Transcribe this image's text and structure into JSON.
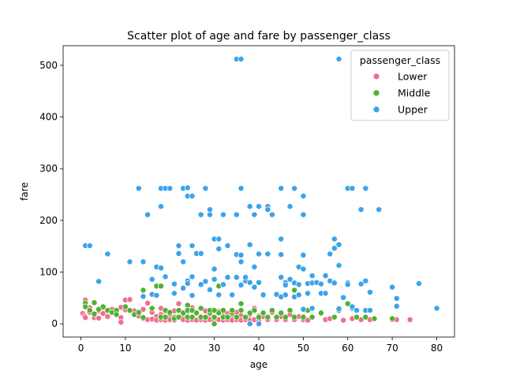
{
  "chart_data": {
    "type": "scatter",
    "title": "Scatter plot of age and fare by passenger_class",
    "xlabel": "age",
    "ylabel": "fare",
    "xlim": [
      -4,
      84
    ],
    "ylim": [
      -25.6,
      537.9
    ],
    "xticks": [
      0,
      10,
      20,
      30,
      40,
      50,
      60,
      70,
      80
    ],
    "yticks": [
      0,
      100,
      200,
      300,
      400,
      500
    ],
    "grid": false,
    "legend": {
      "title": "passenger_class",
      "placement": "top-right"
    },
    "series": [
      {
        "name": "Lower",
        "color": "#f0708a",
        "points": [
          [
            0.4,
            20
          ],
          [
            0.8,
            15
          ],
          [
            1,
            46
          ],
          [
            1,
            12
          ],
          [
            2,
            31
          ],
          [
            2,
            22
          ],
          [
            3,
            18
          ],
          [
            3,
            12
          ],
          [
            4,
            25
          ],
          [
            4,
            11
          ],
          [
            5,
            31
          ],
          [
            5,
            20
          ],
          [
            6,
            14
          ],
          [
            7,
            28
          ],
          [
            8,
            21
          ],
          [
            9,
            32
          ],
          [
            9,
            12
          ],
          [
            9,
            3
          ],
          [
            10,
            46
          ],
          [
            10,
            27
          ],
          [
            11,
            47
          ],
          [
            12,
            25
          ],
          [
            13,
            15
          ],
          [
            14,
            28
          ],
          [
            14,
            10
          ],
          [
            15,
            40
          ],
          [
            15,
            8
          ],
          [
            16,
            22
          ],
          [
            16,
            9
          ],
          [
            17,
            14
          ],
          [
            17,
            7
          ],
          [
            18,
            30
          ],
          [
            18,
            18
          ],
          [
            18,
            8
          ],
          [
            19,
            24
          ],
          [
            19,
            7
          ],
          [
            20,
            16
          ],
          [
            20,
            8
          ],
          [
            21,
            25
          ],
          [
            21,
            7
          ],
          [
            22,
            39
          ],
          [
            22,
            12
          ],
          [
            23,
            18
          ],
          [
            23,
            8
          ],
          [
            24,
            24
          ],
          [
            24,
            7
          ],
          [
            25,
            31
          ],
          [
            25,
            8
          ],
          [
            26,
            20
          ],
          [
            26,
            7
          ],
          [
            27,
            14
          ],
          [
            27,
            8
          ],
          [
            28,
            25
          ],
          [
            28,
            7
          ],
          [
            29,
            18
          ],
          [
            29,
            8
          ],
          [
            30,
            14
          ],
          [
            30,
            7
          ],
          [
            31,
            24
          ],
          [
            31,
            8
          ],
          [
            32,
            16
          ],
          [
            32,
            7
          ],
          [
            33,
            20
          ],
          [
            33,
            8
          ],
          [
            34,
            14
          ],
          [
            34,
            7
          ],
          [
            35,
            22
          ],
          [
            35,
            8
          ],
          [
            36,
            16
          ],
          [
            36,
            7
          ],
          [
            37,
            12
          ],
          [
            37,
            8
          ],
          [
            38,
            18
          ],
          [
            38,
            7
          ],
          [
            39,
            30
          ],
          [
            39,
            8
          ],
          [
            40,
            15
          ],
          [
            40,
            7
          ],
          [
            41,
            14
          ],
          [
            42,
            8
          ],
          [
            43,
            22
          ],
          [
            44,
            8
          ],
          [
            45,
            14
          ],
          [
            46,
            8
          ],
          [
            47,
            18
          ],
          [
            48,
            8
          ],
          [
            49,
            14
          ],
          [
            50,
            8
          ],
          [
            51,
            7
          ],
          [
            55,
            8
          ],
          [
            56,
            10
          ],
          [
            59,
            7
          ],
          [
            61,
            10
          ],
          [
            63,
            8
          ],
          [
            65,
            8
          ],
          [
            70,
            8
          ],
          [
            71,
            8
          ],
          [
            74,
            8
          ]
        ]
      },
      {
        "name": "Middle",
        "color": "#4fb132",
        "points": [
          [
            1,
            40
          ],
          [
            1,
            33
          ],
          [
            2,
            26
          ],
          [
            3,
            41
          ],
          [
            3,
            19
          ],
          [
            4,
            28
          ],
          [
            5,
            33
          ],
          [
            6,
            26
          ],
          [
            7,
            22
          ],
          [
            8,
            26
          ],
          [
            8,
            18
          ],
          [
            10,
            33
          ],
          [
            11,
            26
          ],
          [
            12,
            18
          ],
          [
            13,
            22
          ],
          [
            14,
            12
          ],
          [
            14,
            65
          ],
          [
            16,
            30
          ],
          [
            17,
            73
          ],
          [
            18,
            73
          ],
          [
            18,
            13
          ],
          [
            19,
            13
          ],
          [
            19,
            26
          ],
          [
            20,
            22
          ],
          [
            21,
            13
          ],
          [
            21,
            10
          ],
          [
            22,
            13
          ],
          [
            22,
            26
          ],
          [
            23,
            21
          ],
          [
            24,
            13
          ],
          [
            24,
            36
          ],
          [
            24,
            26
          ],
          [
            25,
            13
          ],
          [
            25,
            26
          ],
          [
            26,
            21
          ],
          [
            27,
            13
          ],
          [
            27,
            30
          ],
          [
            28,
            13
          ],
          [
            29,
            21
          ],
          [
            29,
            26
          ],
          [
            30,
            13
          ],
          [
            30,
            0
          ],
          [
            30,
            26
          ],
          [
            31,
            21
          ],
          [
            31,
            73
          ],
          [
            32,
            13
          ],
          [
            32,
            26
          ],
          [
            33,
            13
          ],
          [
            34,
            21
          ],
          [
            34,
            26
          ],
          [
            35,
            13
          ],
          [
            36,
            26
          ],
          [
            36,
            39
          ],
          [
            37,
            13
          ],
          [
            38,
            21
          ],
          [
            39,
            26
          ],
          [
            40,
            13
          ],
          [
            41,
            21
          ],
          [
            42,
            13
          ],
          [
            43,
            26
          ],
          [
            44,
            13
          ],
          [
            45,
            21
          ],
          [
            46,
            13
          ],
          [
            47,
            26
          ],
          [
            48,
            13
          ],
          [
            48,
            65
          ],
          [
            50,
            13
          ],
          [
            51,
            26
          ],
          [
            52,
            13
          ],
          [
            54,
            21
          ],
          [
            57,
            13
          ],
          [
            58,
            26
          ],
          [
            60,
            39
          ],
          [
            61,
            30
          ],
          [
            62,
            13
          ],
          [
            64,
            13
          ],
          [
            66,
            10
          ],
          [
            70,
            10
          ]
        ]
      },
      {
        "name": "Upper",
        "color": "#3ba3ec",
        "points": [
          [
            1,
            151
          ],
          [
            2,
            151
          ],
          [
            4,
            82
          ],
          [
            6,
            135
          ],
          [
            11,
            120
          ],
          [
            13,
            262
          ],
          [
            14,
            120
          ],
          [
            14,
            53
          ],
          [
            15,
            211
          ],
          [
            16,
            86
          ],
          [
            16,
            57
          ],
          [
            17,
            110
          ],
          [
            17,
            55
          ],
          [
            18,
            262
          ],
          [
            18,
            227
          ],
          [
            18,
            108
          ],
          [
            19,
            262
          ],
          [
            19,
            91
          ],
          [
            20,
            262
          ],
          [
            21,
            77
          ],
          [
            21,
            59
          ],
          [
            22,
            151
          ],
          [
            22,
            136
          ],
          [
            23,
            120
          ],
          [
            23,
            262
          ],
          [
            23,
            69
          ],
          [
            24,
            263
          ],
          [
            24,
            247
          ],
          [
            24,
            83
          ],
          [
            24,
            78
          ],
          [
            25,
            247
          ],
          [
            25,
            151
          ],
          [
            25,
            91
          ],
          [
            25,
            55
          ],
          [
            26,
            136
          ],
          [
            27,
            211
          ],
          [
            27,
            136
          ],
          [
            27,
            76
          ],
          [
            28,
            262
          ],
          [
            28,
            82
          ],
          [
            29,
            211
          ],
          [
            29,
            221
          ],
          [
            29,
            66
          ],
          [
            30,
            164
          ],
          [
            30,
            106
          ],
          [
            30,
            86
          ],
          [
            31,
            164
          ],
          [
            31,
            145
          ],
          [
            31,
            56
          ],
          [
            32,
            211
          ],
          [
            32,
            76
          ],
          [
            33,
            151
          ],
          [
            33,
            90
          ],
          [
            34,
            56
          ],
          [
            35,
            512
          ],
          [
            35,
            211
          ],
          [
            35,
            134
          ],
          [
            35,
            90
          ],
          [
            36,
            512
          ],
          [
            36,
            262
          ],
          [
            36,
            133
          ],
          [
            36,
            120
          ],
          [
            36,
            75
          ],
          [
            37,
            83
          ],
          [
            37,
            90
          ],
          [
            38,
            227
          ],
          [
            38,
            153
          ],
          [
            38,
            80
          ],
          [
            38,
            0
          ],
          [
            39,
            211
          ],
          [
            39,
            110
          ],
          [
            39,
            71
          ],
          [
            40,
            227
          ],
          [
            40,
            135
          ],
          [
            40,
            80
          ],
          [
            40,
            0
          ],
          [
            41,
            56
          ],
          [
            42,
            227
          ],
          [
            42,
            135
          ],
          [
            42,
            221
          ],
          [
            43,
            211
          ],
          [
            44,
            57
          ],
          [
            45,
            262
          ],
          [
            45,
            164
          ],
          [
            45,
            90
          ],
          [
            45,
            134
          ],
          [
            45,
            52
          ],
          [
            46,
            80
          ],
          [
            46,
            75
          ],
          [
            46,
            56
          ],
          [
            47,
            227
          ],
          [
            47,
            86
          ],
          [
            48,
            262
          ],
          [
            48,
            79
          ],
          [
            48,
            52
          ],
          [
            49,
            110
          ],
          [
            49,
            76
          ],
          [
            49,
            56
          ],
          [
            50,
            247
          ],
          [
            50,
            211
          ],
          [
            50,
            133
          ],
          [
            50,
            106
          ],
          [
            50,
            28
          ],
          [
            51,
            78
          ],
          [
            51,
            59
          ],
          [
            52,
            93
          ],
          [
            52,
            79
          ],
          [
            52,
            30
          ],
          [
            53,
            80
          ],
          [
            54,
            77
          ],
          [
            54,
            59
          ],
          [
            55,
            93
          ],
          [
            55,
            59
          ],
          [
            56,
            135
          ],
          [
            56,
            83
          ],
          [
            57,
            164
          ],
          [
            57,
            146
          ],
          [
            57,
            79
          ],
          [
            58,
            512
          ],
          [
            58,
            153
          ],
          [
            58,
            113
          ],
          [
            58,
            29
          ],
          [
            59,
            51
          ],
          [
            60,
            262
          ],
          [
            60,
            79
          ],
          [
            60,
            76
          ],
          [
            61,
            262
          ],
          [
            61,
            33
          ],
          [
            62,
            26
          ],
          [
            63,
            221
          ],
          [
            63,
            77
          ],
          [
            64,
            262
          ],
          [
            64,
            83
          ],
          [
            64,
            26
          ],
          [
            65,
            61
          ],
          [
            65,
            26
          ],
          [
            67,
            221
          ],
          [
            70,
            71
          ],
          [
            71,
            49
          ],
          [
            71,
            34
          ],
          [
            76,
            78
          ],
          [
            80,
            30
          ]
        ]
      }
    ]
  }
}
